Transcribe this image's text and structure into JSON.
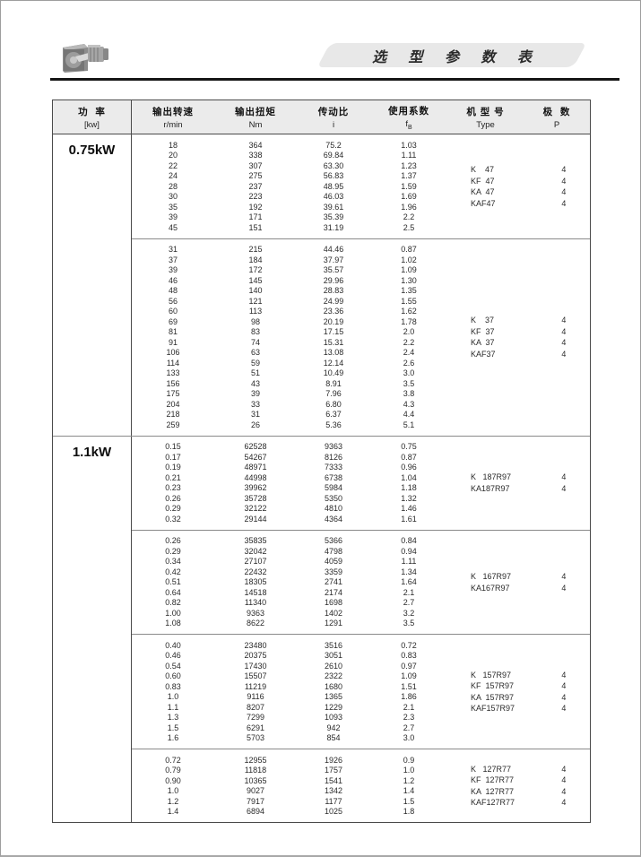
{
  "header": {
    "title": "选 型 参 数 表"
  },
  "table": {
    "columns": {
      "power": {
        "zh": "功  率",
        "unit": "[kw]"
      },
      "speed": {
        "zh": "输出转速",
        "unit": "r/min"
      },
      "torque": {
        "zh": "输出扭矩",
        "unit": "Nm"
      },
      "ratio": {
        "zh": "传动比",
        "unit": "i"
      },
      "factor": {
        "zh": "使用系数",
        "unit_base": "f",
        "unit_sub": "B"
      },
      "type": {
        "zh": "机 型 号",
        "unit": "Type"
      },
      "poles": {
        "zh": "极  数",
        "unit": "P"
      }
    },
    "sections": [
      {
        "power": "0.75kW",
        "blocks": [
          {
            "rows": [
              [
                "18",
                "364",
                "75.2",
                "1.03"
              ],
              [
                "20",
                "338",
                "69.84",
                "1.11"
              ],
              [
                "22",
                "307",
                "63.30",
                "1.23"
              ],
              [
                "24",
                "275",
                "56.83",
                "1.37"
              ],
              [
                "28",
                "237",
                "48.95",
                "1.59"
              ],
              [
                "30",
                "223",
                "46.03",
                "1.69"
              ],
              [
                "35",
                "192",
                "39.61",
                "1.96"
              ],
              [
                "39",
                "171",
                "35.39",
                "2.2"
              ],
              [
                "45",
                "151",
                "31.19",
                "2.5"
              ]
            ],
            "types": [
              {
                "model": "K    47",
                "poles": "4"
              },
              {
                "model": "KF  47",
                "poles": "4"
              },
              {
                "model": "KA  47",
                "poles": "4"
              },
              {
                "model": "KAF47",
                "poles": "4"
              }
            ]
          },
          {
            "rows": [
              [
                "31",
                "215",
                "44.46",
                "0.87"
              ],
              [
                "37",
                "184",
                "37.97",
                "1.02"
              ],
              [
                "39",
                "172",
                "35.57",
                "1.09"
              ],
              [
                "46",
                "145",
                "29.96",
                "1.30"
              ],
              [
                "48",
                "140",
                "28.83",
                "1.35"
              ],
              [
                "56",
                "121",
                "24.99",
                "1.55"
              ],
              [
                "60",
                "113",
                "23.36",
                "1.62"
              ],
              [
                "69",
                "98",
                "20.19",
                "1.78"
              ],
              [
                "81",
                "83",
                "17.15",
                "2.0"
              ],
              [
                "91",
                "74",
                "15.31",
                "2.2"
              ],
              [
                "106",
                "63",
                "13.08",
                "2.4"
              ],
              [
                "114",
                "59",
                "12.14",
                "2.6"
              ],
              [
                "133",
                "51",
                "10.49",
                "3.0"
              ],
              [
                "156",
                "43",
                "8.91",
                "3.5"
              ],
              [
                "175",
                "39",
                "7.96",
                "3.8"
              ],
              [
                "204",
                "33",
                "6.80",
                "4.3"
              ],
              [
                "218",
                "31",
                "6.37",
                "4.4"
              ],
              [
                "259",
                "26",
                "5.36",
                "5.1"
              ]
            ],
            "types": [
              {
                "model": "K    37",
                "poles": "4"
              },
              {
                "model": "KF  37",
                "poles": "4"
              },
              {
                "model": "KA  37",
                "poles": "4"
              },
              {
                "model": "KAF37",
                "poles": "4"
              }
            ]
          }
        ]
      },
      {
        "power": "1.1kW",
        "blocks": [
          {
            "rows": [
              [
                "0.15",
                "62528",
                "9363",
                "0.75"
              ],
              [
                "0.17",
                "54267",
                "8126",
                "0.87"
              ],
              [
                "0.19",
                "48971",
                "7333",
                "0.96"
              ],
              [
                "0.21",
                "44998",
                "6738",
                "1.04"
              ],
              [
                "0.23",
                "39962",
                "5984",
                "1.18"
              ],
              [
                "0.26",
                "35728",
                "5350",
                "1.32"
              ],
              [
                "0.29",
                "32122",
                "4810",
                "1.46"
              ],
              [
                "0.32",
                "29144",
                "4364",
                "1.61"
              ]
            ],
            "types": [
              {
                "model": "K   187R97",
                "poles": "4"
              },
              {
                "model": "KA187R97",
                "poles": "4"
              }
            ]
          },
          {
            "rows": [
              [
                "0.26",
                "35835",
                "5366",
                "0.84"
              ],
              [
                "0.29",
                "32042",
                "4798",
                "0.94"
              ],
              [
                "0.34",
                "27107",
                "4059",
                "1.11"
              ],
              [
                "0.42",
                "22432",
                "3359",
                "1.34"
              ],
              [
                "0.51",
                "18305",
                "2741",
                "1.64"
              ],
              [
                "0.64",
                "14518",
                "2174",
                "2.1"
              ],
              [
                "0.82",
                "11340",
                "1698",
                "2.7"
              ],
              [
                "1.00",
                "9363",
                "1402",
                "3.2"
              ],
              [
                "1.08",
                "8622",
                "1291",
                "3.5"
              ]
            ],
            "types": [
              {
                "model": "K   167R97",
                "poles": "4"
              },
              {
                "model": "KA167R97",
                "poles": "4"
              }
            ]
          },
          {
            "rows": [
              [
                "0.40",
                "23480",
                "3516",
                "0.72"
              ],
              [
                "0.46",
                "20375",
                "3051",
                "0.83"
              ],
              [
                "0.54",
                "17430",
                "2610",
                "0.97"
              ],
              [
                "0.60",
                "15507",
                "2322",
                "1.09"
              ],
              [
                "0.83",
                "11219",
                "1680",
                "1.51"
              ],
              [
                "1.0",
                "9116",
                "1365",
                "1.86"
              ],
              [
                "1.1",
                "8207",
                "1229",
                "2.1"
              ],
              [
                "1.3",
                "7299",
                "1093",
                "2.3"
              ],
              [
                "1.5",
                "6291",
                "942",
                "2.7"
              ],
              [
                "1.6",
                "5703",
                "854",
                "3.0"
              ]
            ],
            "types": [
              {
                "model": "K   157R97",
                "poles": "4"
              },
              {
                "model": "KF  157R97",
                "poles": "4"
              },
              {
                "model": "KA  157R97",
                "poles": "4"
              },
              {
                "model": "KAF157R97",
                "poles": "4"
              }
            ]
          },
          {
            "rows": [
              [
                "0.72",
                "12955",
                "1926",
                "0.9"
              ],
              [
                "0.79",
                "11818",
                "1757",
                "1.0"
              ],
              [
                "0.90",
                "10365",
                "1541",
                "1.2"
              ],
              [
                "1.0",
                "9027",
                "1342",
                "1.4"
              ],
              [
                "1.2",
                "7917",
                "1177",
                "1.5"
              ],
              [
                "1.4",
                "6894",
                "1025",
                "1.8"
              ]
            ],
            "types": [
              {
                "model": "K   127R77",
                "poles": "4"
              },
              {
                "model": "KF  127R77",
                "poles": "4"
              },
              {
                "model": "KA  127R77",
                "poles": "4"
              },
              {
                "model": "KAF127R77",
                "poles": "4"
              }
            ]
          }
        ]
      }
    ]
  }
}
